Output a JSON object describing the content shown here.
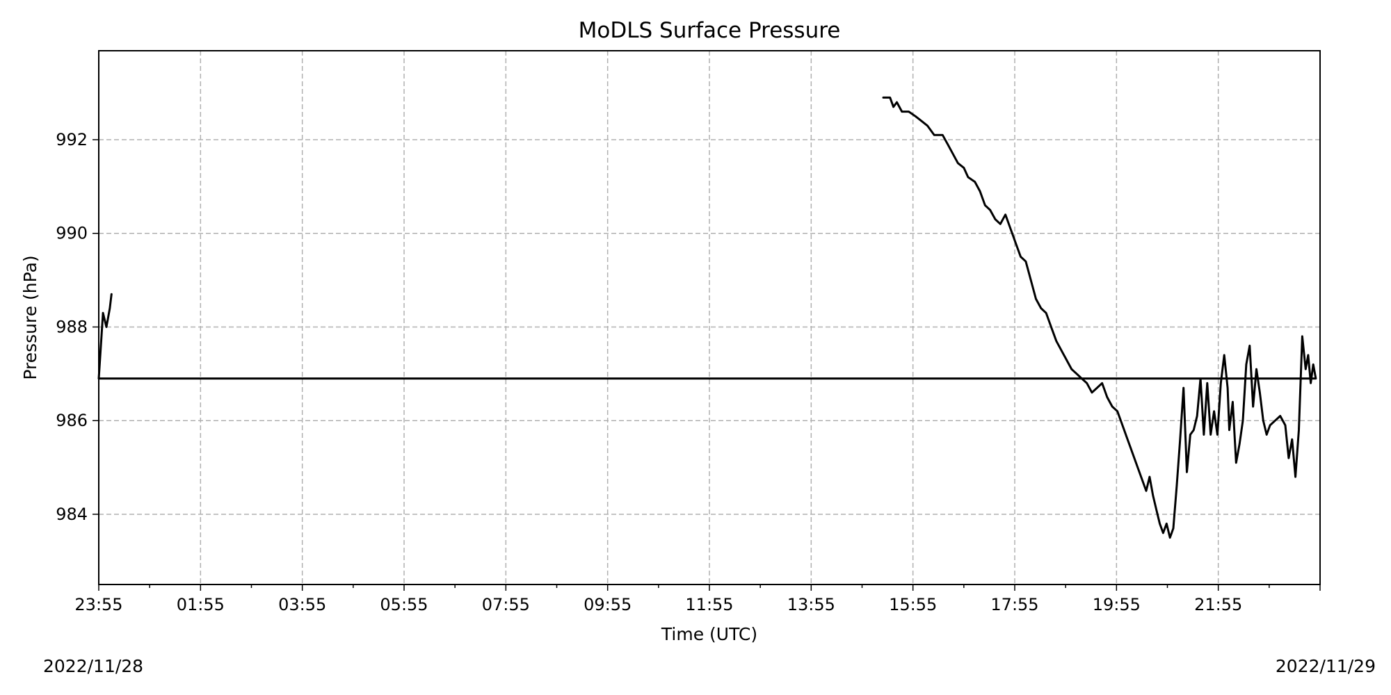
{
  "chart_data": {
    "type": "line",
    "title": "MoDLS Surface Pressure",
    "xlabel": "Time (UTC)",
    "ylabel": "Pressure (hPa)",
    "grid": true,
    "grid_style": "dashed",
    "line_color": "#000000",
    "grid_color": "#b0b0b0",
    "xlim": [
      "23:55",
      "23:55"
    ],
    "ylim": [
      982.5,
      993.9
    ],
    "x_ticks": [
      "23:55",
      "01:55",
      "03:55",
      "05:55",
      "07:55",
      "09:55",
      "11:55",
      "13:55",
      "15:55",
      "17:55",
      "19:55",
      "21:55"
    ],
    "y_ticks": [
      984,
      986,
      988,
      990,
      992
    ],
    "date_start": "2022/11/28",
    "date_end": "2022/11/29",
    "series": [
      {
        "values": [
          [
            "15:20",
            992.9
          ],
          [
            "15:28",
            992.9
          ],
          [
            "15:32",
            992.7
          ],
          [
            "15:36",
            992.8
          ],
          [
            "15:42",
            992.6
          ],
          [
            "15:50",
            992.6
          ],
          [
            "15:58",
            992.5
          ],
          [
            "16:05",
            992.4
          ],
          [
            "16:12",
            992.3
          ],
          [
            "16:20",
            992.1
          ],
          [
            "16:30",
            992.1
          ],
          [
            "16:36",
            991.9
          ],
          [
            "16:42",
            991.7
          ],
          [
            "16:48",
            991.5
          ],
          [
            "16:55",
            991.4
          ],
          [
            "17:00",
            991.2
          ],
          [
            "17:08",
            991.1
          ],
          [
            "17:14",
            990.9
          ],
          [
            "17:20",
            990.6
          ],
          [
            "17:26",
            990.5
          ],
          [
            "17:32",
            990.3
          ],
          [
            "17:38",
            990.2
          ],
          [
            "17:44",
            990.4
          ],
          [
            "17:50",
            990.1
          ],
          [
            "17:56",
            989.8
          ],
          [
            "18:02",
            989.5
          ],
          [
            "18:08",
            989.4
          ],
          [
            "18:14",
            989.0
          ],
          [
            "18:20",
            988.6
          ],
          [
            "18:26",
            988.4
          ],
          [
            "18:32",
            988.3
          ],
          [
            "18:38",
            988.0
          ],
          [
            "18:44",
            987.7
          ],
          [
            "18:50",
            987.5
          ],
          [
            "18:56",
            987.3
          ],
          [
            "19:02",
            987.1
          ],
          [
            "19:08",
            987.0
          ],
          [
            "19:14",
            986.9
          ],
          [
            "19:20",
            986.8
          ],
          [
            "19:26",
            986.6
          ],
          [
            "19:32",
            986.7
          ],
          [
            "19:38",
            986.8
          ],
          [
            "19:44",
            986.5
          ],
          [
            "19:50",
            986.3
          ],
          [
            "19:56",
            986.2
          ],
          [
            "20:02",
            985.9
          ],
          [
            "20:08",
            985.6
          ],
          [
            "20:14",
            985.3
          ],
          [
            "20:20",
            985.0
          ],
          [
            "20:26",
            984.7
          ],
          [
            "20:30",
            984.5
          ],
          [
            "20:34",
            984.8
          ],
          [
            "20:38",
            984.4
          ],
          [
            "20:42",
            984.1
          ],
          [
            "20:46",
            983.8
          ],
          [
            "20:50",
            983.6
          ],
          [
            "20:54",
            983.8
          ],
          [
            "20:58",
            983.5
          ],
          [
            "21:02",
            983.7
          ],
          [
            "21:06",
            984.6
          ],
          [
            "21:10",
            985.6
          ],
          [
            "21:14",
            986.7
          ],
          [
            "21:18",
            984.9
          ],
          [
            "21:22",
            985.7
          ],
          [
            "21:26",
            985.8
          ],
          [
            "21:30",
            986.1
          ],
          [
            "21:34",
            986.9
          ],
          [
            "21:38",
            985.7
          ],
          [
            "21:42",
            986.8
          ],
          [
            "21:46",
            985.7
          ],
          [
            "21:50",
            986.2
          ],
          [
            "21:54",
            985.7
          ],
          [
            "21:58",
            986.8
          ],
          [
            "22:02",
            987.4
          ],
          [
            "22:06",
            986.7
          ],
          [
            "22:08",
            985.8
          ],
          [
            "22:12",
            986.4
          ],
          [
            "22:16",
            985.1
          ],
          [
            "22:20",
            985.5
          ],
          [
            "22:24",
            986.0
          ],
          [
            "22:28",
            987.2
          ],
          [
            "22:32",
            987.6
          ],
          [
            "22:36",
            986.3
          ],
          [
            "22:40",
            987.1
          ],
          [
            "22:44",
            986.6
          ],
          [
            "22:48",
            986.0
          ],
          [
            "22:52",
            985.7
          ],
          [
            "22:56",
            985.9
          ],
          [
            "23:02",
            986.0
          ],
          [
            "23:08",
            986.1
          ],
          [
            "23:14",
            985.9
          ],
          [
            "23:18",
            985.2
          ],
          [
            "23:22",
            985.6
          ],
          [
            "23:26",
            984.8
          ],
          [
            "23:30",
            985.8
          ],
          [
            "23:34",
            987.8
          ],
          [
            "23:38",
            987.1
          ],
          [
            "23:41",
            987.4
          ],
          [
            "23:44",
            986.8
          ],
          [
            "23:47",
            987.2
          ],
          [
            "23:50",
            986.9
          ],
          [
            "23:55",
            986.9
          ],
          [
            "00:00",
            988.3
          ],
          [
            "00:04",
            988.0
          ],
          [
            "00:08",
            988.4
          ],
          [
            "00:10",
            988.7
          ]
        ]
      }
    ]
  }
}
